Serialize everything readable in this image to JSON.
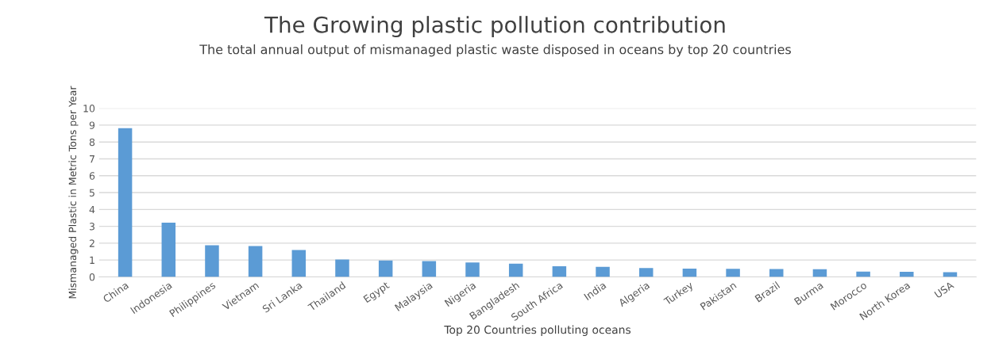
{
  "chart_data": {
    "type": "bar",
    "title": "The Growing plastic pollution contribution",
    "subtitle": "The total annual output of mismanaged plastic waste disposed in oceans by top 20 countries",
    "xlabel": "Top 20 Countries polluting oceans",
    "ylabel": "Mismanaged Plastic in Metric Tons per Year",
    "categories": [
      "China",
      "Indonesia",
      "Philippines",
      "Vietnam",
      "Sri Lanka",
      "Thailand",
      "Egypt",
      "Malaysia",
      "Nigeria",
      "Bangladesh",
      "South Africa",
      "India",
      "Algeria",
      "Turkey",
      "Pakistan",
      "Brazil",
      "Burma",
      "Morocco",
      "North Korea",
      "USA"
    ],
    "values": [
      8.82,
      3.22,
      1.88,
      1.83,
      1.59,
      1.03,
      0.97,
      0.94,
      0.85,
      0.79,
      0.63,
      0.6,
      0.52,
      0.49,
      0.48,
      0.47,
      0.46,
      0.31,
      0.3,
      0.28
    ],
    "color": "#5b9bd5",
    "ylim": [
      0,
      10
    ],
    "yticks": [
      0,
      1,
      2,
      3,
      4,
      5,
      6,
      7,
      8,
      9,
      10
    ],
    "grid": "y"
  }
}
